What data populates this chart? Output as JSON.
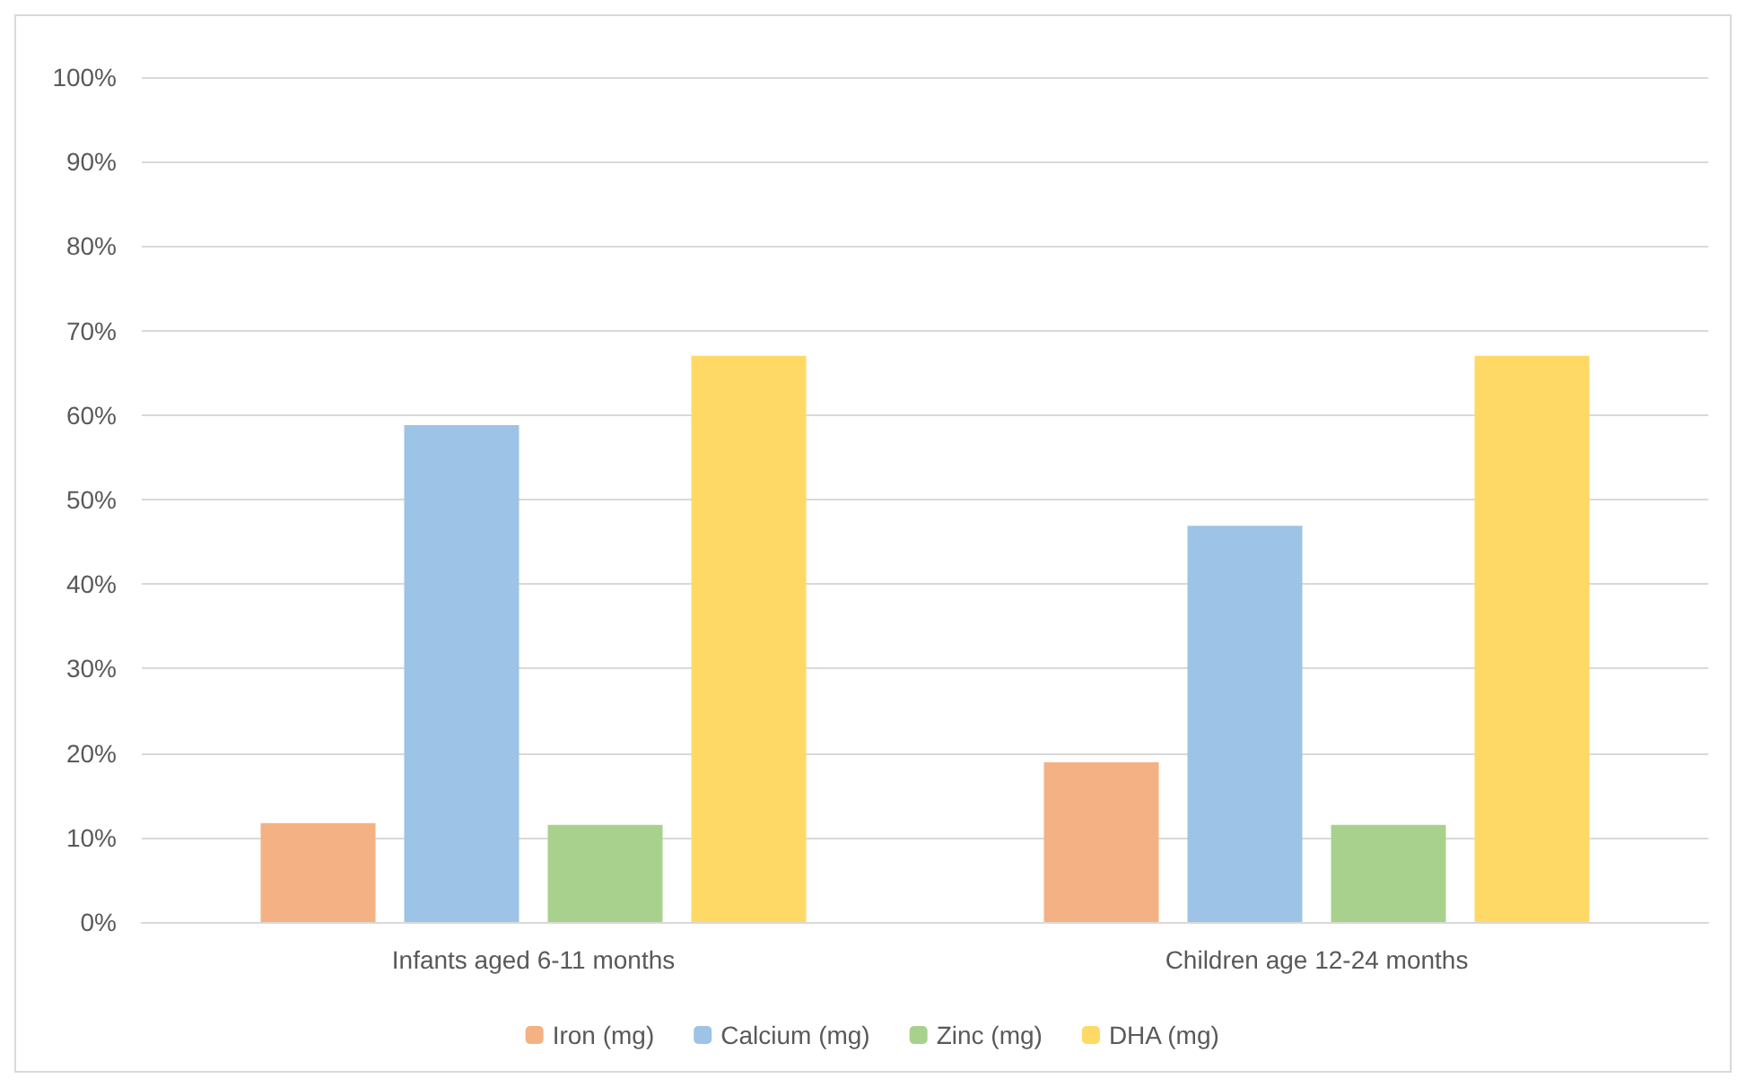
{
  "chart_data": {
    "type": "bar",
    "categories": [
      "Infants aged 6-11 months",
      "Children age 12-24 months"
    ],
    "series": [
      {
        "name": "Iron (mg)",
        "color": "#f4b183",
        "values": [
          11.7,
          18.9
        ]
      },
      {
        "name": "Calcium (mg)",
        "color": "#9dc3e6",
        "values": [
          58.8,
          46.9
        ]
      },
      {
        "name": "Zinc (mg)",
        "color": "#a9d18e",
        "values": [
          11.5,
          11.5
        ]
      },
      {
        "name": "DHA (mg)",
        "color": "#ffd966",
        "values": [
          67,
          67
        ]
      }
    ],
    "ylim": [
      0,
      100
    ],
    "yticks": [
      {
        "value": 0,
        "label": "0%"
      },
      {
        "value": 10,
        "label": "10%"
      },
      {
        "value": 20,
        "label": "20%"
      },
      {
        "value": 30,
        "label": "30%"
      },
      {
        "value": 40,
        "label": "40%"
      },
      {
        "value": 50,
        "label": "50%"
      },
      {
        "value": 60,
        "label": "60%"
      },
      {
        "value": 70,
        "label": "70%"
      },
      {
        "value": 80,
        "label": "80%"
      },
      {
        "value": 90,
        "label": "90%"
      },
      {
        "value": 100,
        "label": "100%"
      }
    ],
    "grid": "y",
    "legend": "bottom"
  }
}
